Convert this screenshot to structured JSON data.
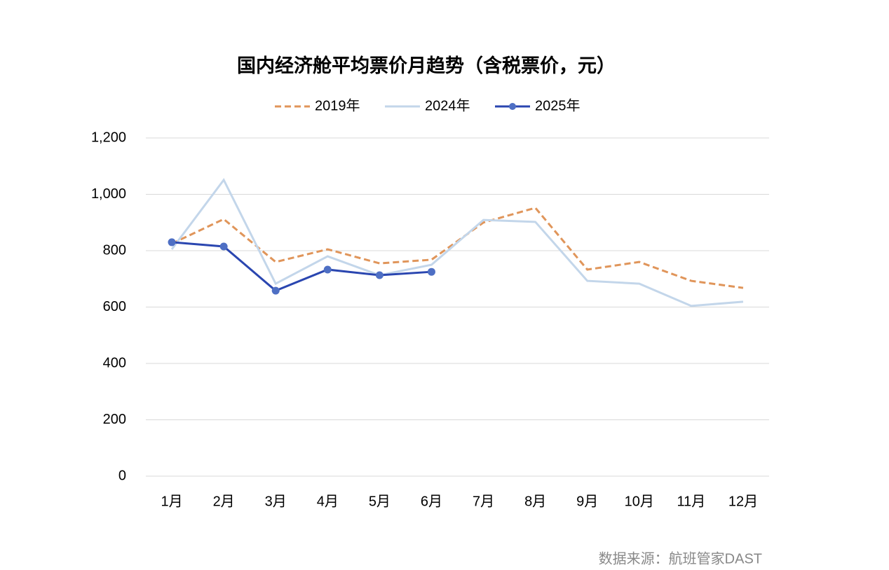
{
  "chart_data": {
    "type": "line",
    "title": "国内经济舱平均票价月趋势（含税票价，元）",
    "categories": [
      "1月",
      "2月",
      "3月",
      "4月",
      "5月",
      "6月",
      "7月",
      "8月",
      "9月",
      "10月",
      "11月",
      "12月"
    ],
    "series": [
      {
        "name": "2019年",
        "color": "#e0955a",
        "style": "dashed",
        "values": [
          825,
          912,
          760,
          805,
          755,
          768,
          900,
          952,
          733,
          760,
          693,
          668
        ]
      },
      {
        "name": "2024年",
        "color": "#c3d6ea",
        "style": "solid",
        "values": [
          805,
          1051,
          683,
          780,
          713,
          750,
          909,
          902,
          693,
          683,
          604,
          619
        ]
      },
      {
        "name": "2025年",
        "color": "#2a46b0",
        "style": "solid",
        "marker": "circle",
        "marker_color": "#4e6fc4",
        "values": [
          830,
          815,
          658,
          733,
          713,
          725,
          null,
          null,
          null,
          null,
          null,
          null
        ]
      }
    ],
    "ylim": [
      0,
      1200
    ],
    "yticks": [
      0,
      200,
      400,
      600,
      800,
      {
        "value": 1000,
        "label": "1,000"
      },
      {
        "value": 1200,
        "label": "1,200"
      }
    ],
    "grid": true,
    "legend": "top",
    "source": "数据来源：航班管家DAST"
  }
}
